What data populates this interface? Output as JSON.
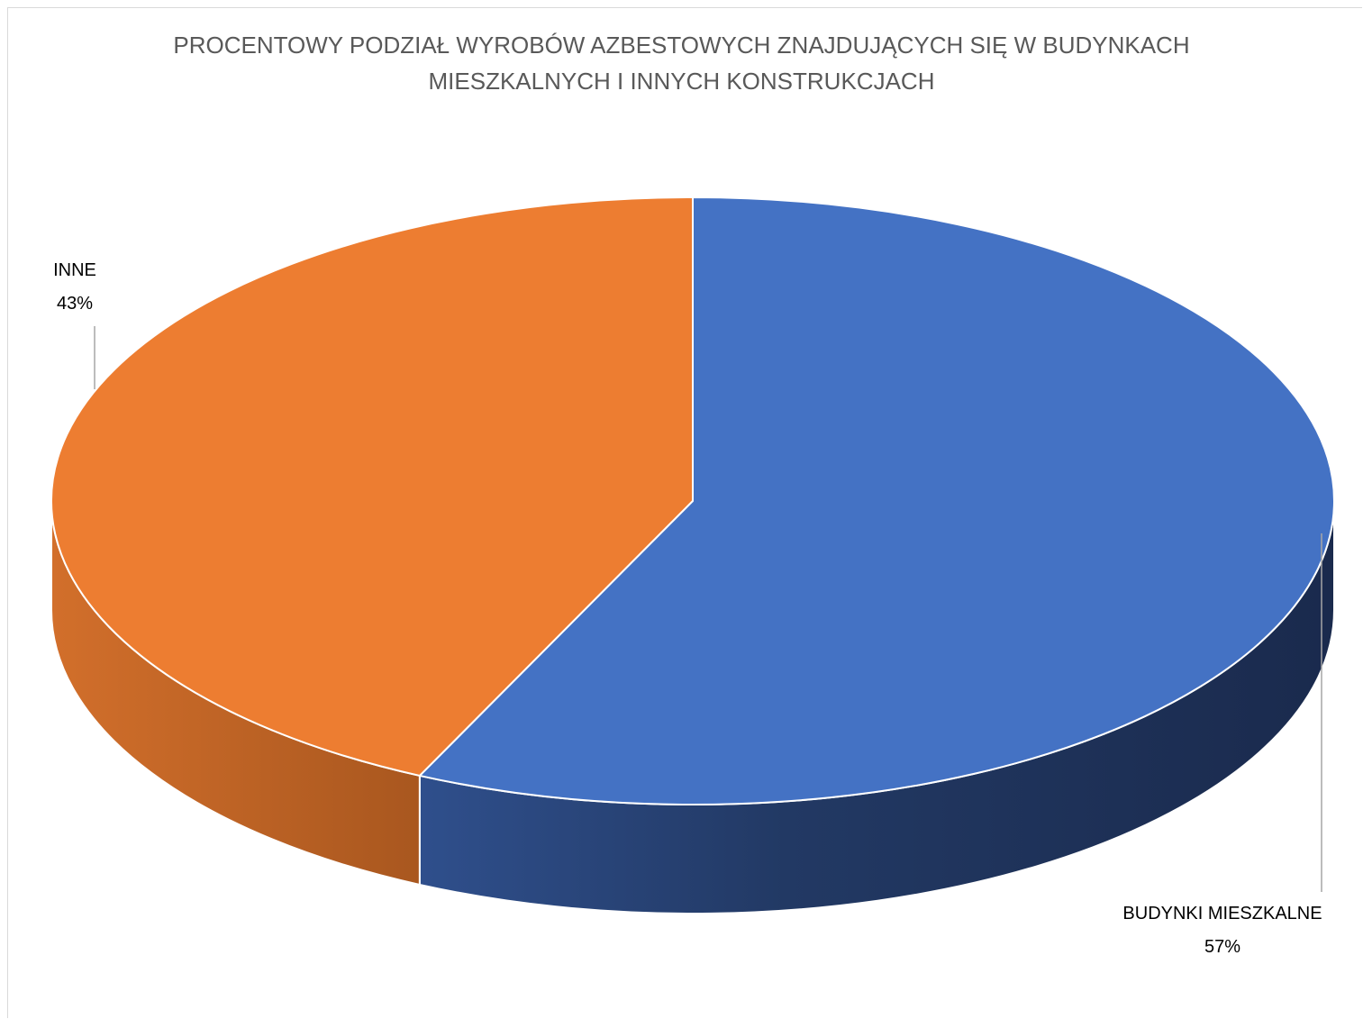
{
  "chart_data": {
    "type": "pie",
    "title": [
      "PROCENTOWY PODZIAŁ WYROBÓW AZBESTOWYCH ZNAJDUJĄCYCH SIĘ W BUDYNKACH",
      "MIESZKALNYCH I INNYCH KONSTRUKCJACH"
    ],
    "categories": [
      "BUDYNKI MIESZKALNE",
      "INNE"
    ],
    "values": [
      57,
      43
    ],
    "value_labels": [
      "57%",
      "43%"
    ],
    "colors": [
      "#4472C4",
      "#ED7D31"
    ],
    "legend": "none",
    "style": "3d"
  }
}
